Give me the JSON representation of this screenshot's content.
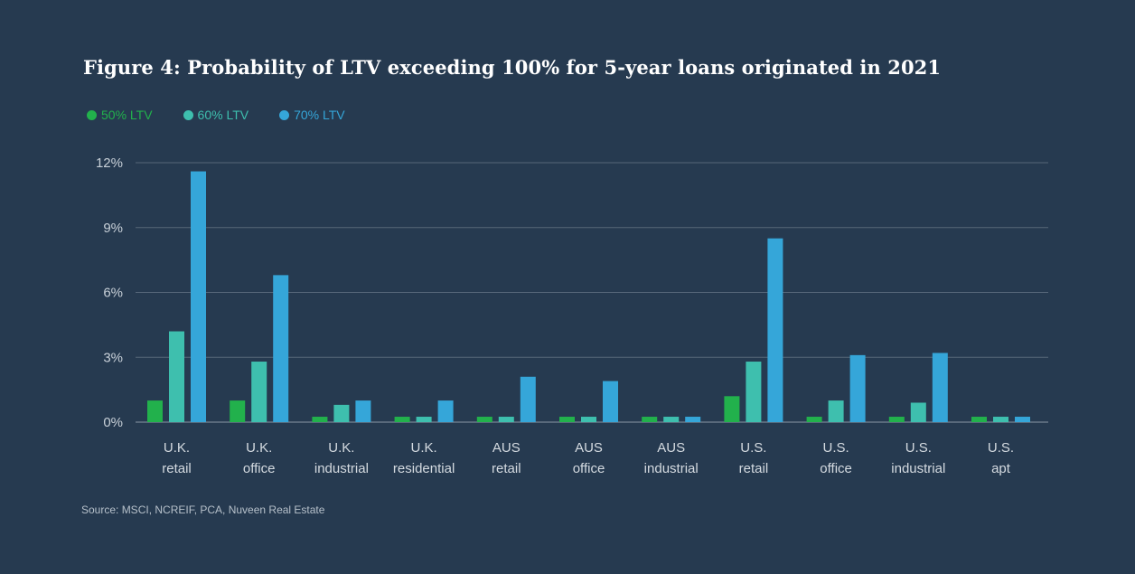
{
  "colors": {
    "background": "#263a50",
    "gridline": "#566779",
    "series": [
      "#22b14c",
      "#3ebfae",
      "#35a6d9"
    ]
  },
  "chart_data": {
    "type": "bar",
    "title": "Figure 4: Probability of LTV exceeding 100% for 5-year loans originated in 2021",
    "source": "Source: MSCI, NCREIF, PCA, Nuveen Real Estate",
    "xlabel": "",
    "ylabel": "",
    "ylim": [
      0,
      12
    ],
    "yticks": [
      0,
      3,
      6,
      9,
      12
    ],
    "ytick_labels": [
      "0%",
      "3%",
      "6%",
      "9%",
      "12%"
    ],
    "grid": true,
    "legend_position": "top-left",
    "categories": [
      [
        "U.K.",
        "retail"
      ],
      [
        "U.K.",
        "office"
      ],
      [
        "U.K.",
        "industrial"
      ],
      [
        "U.K.",
        "residential"
      ],
      [
        "AUS",
        "retail"
      ],
      [
        "AUS",
        "office"
      ],
      [
        "AUS",
        "industrial"
      ],
      [
        "U.S.",
        "retail"
      ],
      [
        "U.S.",
        "office"
      ],
      [
        "U.S.",
        "industrial"
      ],
      [
        "U.S.",
        "apt"
      ]
    ],
    "series": [
      {
        "name": "50% LTV",
        "values": [
          1.0,
          1.0,
          0.25,
          0.25,
          0.25,
          0.25,
          0.25,
          1.2,
          0.25,
          0.25,
          0.25
        ]
      },
      {
        "name": "60% LTV",
        "values": [
          4.2,
          2.8,
          0.8,
          0.25,
          0.25,
          0.25,
          0.25,
          2.8,
          1.0,
          0.9,
          0.25
        ]
      },
      {
        "name": "70% LTV",
        "values": [
          11.6,
          6.8,
          1.0,
          1.0,
          2.1,
          1.9,
          0.25,
          8.5,
          3.1,
          3.2,
          0.25
        ]
      }
    ]
  }
}
